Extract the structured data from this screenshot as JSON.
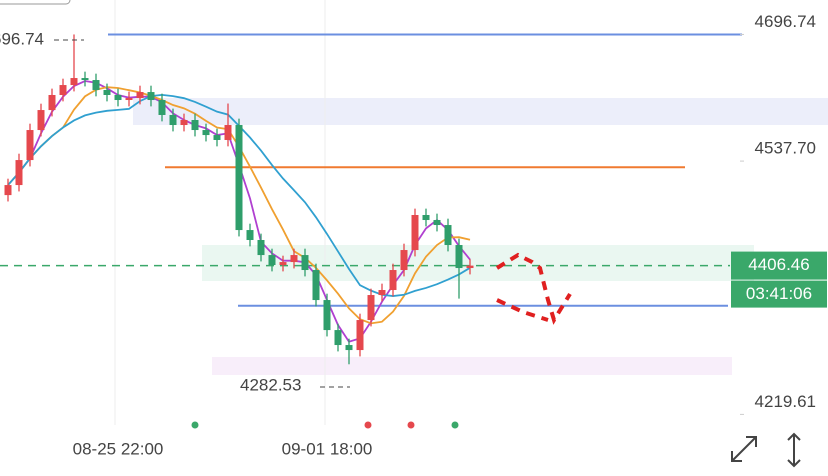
{
  "chart_data": {
    "type": "candlestick",
    "categories": [
      null,
      null,
      null,
      null,
      null,
      null,
      null,
      null,
      null,
      null,
      "08-25 22:00",
      null,
      null,
      null,
      null,
      null,
      null,
      null,
      null,
      null,
      null,
      null,
      null,
      null,
      null,
      null,
      null,
      null,
      null,
      "09-01 18:00",
      null,
      null,
      null,
      null,
      null,
      null,
      null,
      null,
      null,
      null,
      null,
      null,
      null
    ],
    "open": [
      4495,
      4507.6,
      4539.0,
      4576.7,
      4601.8,
      4620.7,
      4633.2,
      4642.0,
      4639.5,
      4627.0,
      4620.7,
      4614.4,
      4616.9,
      4624.4,
      4614.4,
      4595.6,
      4583.0,
      4589.3,
      4576.7,
      4570.4,
      4564.2,
      4583.0,
      4451.1,
      4438.6,
      4419.7,
      4407.2,
      4410.9,
      4419.7,
      4400.9,
      4363.2,
      4325.5,
      4306.7,
      4300.4,
      4338.1,
      4369.5,
      4375.8,
      4400.9,
      4426.0,
      4470.0,
      4463.7,
      4457.4,
      4432.3,
      4403.4
    ],
    "high": [
      4515.6,
      4547,
      4584.7,
      4609.8,
      4628.7,
      4641.2,
      4696.74,
      4650,
      4647.5,
      4635,
      4628.7,
      4624.9,
      4632.4,
      4632.4,
      4622.4,
      4603.6,
      4597.3,
      4597.3,
      4584.7,
      4578.4,
      4610,
      4591,
      4459.1,
      4446.6,
      4427.7,
      4418.9,
      4427.7,
      4427.7,
      4408.9,
      4371.2,
      4333.5,
      4314.7,
      4346.1,
      4377.5,
      4383.8,
      4408.9,
      4434,
      4478,
      4478,
      4471.7,
      4465.4,
      4440.3,
      4414.5
    ],
    "low": [
      4487,
      4499.6,
      4531,
      4568.7,
      4593.8,
      4612.7,
      4625.2,
      4631.5,
      4619,
      4612.7,
      4606.4,
      4606.4,
      4608.9,
      4606.4,
      4587.6,
      4575,
      4575,
      4568.7,
      4562.4,
      4556.2,
      4556.2,
      4443.1,
      4430.6,
      4411.7,
      4399.2,
      4399.2,
      4402.9,
      4392.9,
      4355.2,
      4317.5,
      4298.7,
      4282.53,
      4292.4,
      4330.1,
      4361.5,
      4367.8,
      4392.9,
      4418,
      4455.7,
      4449.4,
      4424.3,
      4365,
      4395.4
    ],
    "close": [
      4507.6,
      4539.0,
      4576.7,
      4601.8,
      4620.7,
      4633.2,
      4642.0,
      4639.5,
      4627.0,
      4620.7,
      4614.4,
      4616.9,
      4624.4,
      4614.4,
      4595.6,
      4583.0,
      4589.3,
      4576.7,
      4570.4,
      4564.2,
      4583.0,
      4451.1,
      4438.6,
      4419.7,
      4407.2,
      4410.9,
      4419.7,
      4400.9,
      4363.2,
      4325.5,
      4306.7,
      4300.4,
      4338.1,
      4369.5,
      4375.8,
      4400.9,
      4426.0,
      4470.0,
      4463.7,
      4457.4,
      4432.3,
      4403.4,
      4406.46
    ],
    "up_color": "#e5484d",
    "down_color": "#2f9e6b",
    "ylim": [
      4200,
      4740
    ],
    "yticks": [
      4696.74,
      {
        "value": 4537.7,
        "label": "4537.70"
      },
      4219.61
    ],
    "levels": [
      {
        "price": 4696.74,
        "color": "#6b8fe0"
      },
      {
        "price": 4530,
        "color": "#f07a30"
      },
      {
        "price": 4356,
        "color": "#6b8fe0"
      }
    ],
    "last_price": 4406.46,
    "last_color": "#3aa86a",
    "countdown": "03:41:06"
  }
}
